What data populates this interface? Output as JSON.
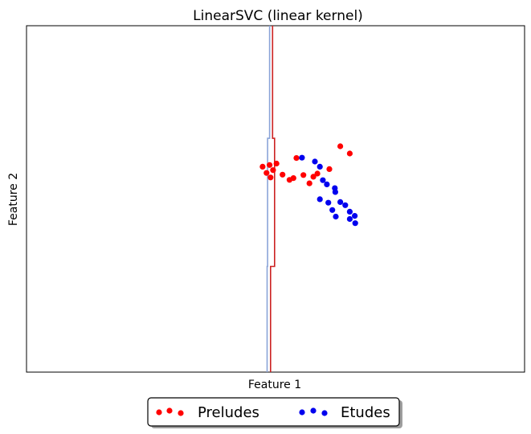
{
  "chart_data": {
    "type": "scatter",
    "title": "LinearSVC (linear kernel)",
    "xlabel": "Feature 1",
    "ylabel": "Feature 2",
    "xlim": [
      0,
      100
    ],
    "ylim": [
      0,
      100
    ],
    "grid": false,
    "ticks_shown": false,
    "legend_position": "below plot, centered",
    "colors": {
      "preludes": "#ff0000",
      "etudes": "#0000ee",
      "boundary_red": "#cc2222",
      "boundary_blue": "#8aa4d8"
    },
    "series": [
      {
        "name": "Preludes",
        "points": [
          [
            47.4,
            59.3
          ],
          [
            48.2,
            57.5
          ],
          [
            48.8,
            59.8
          ],
          [
            49.5,
            58.3
          ],
          [
            49.0,
            56.2
          ],
          [
            50.2,
            60.2
          ],
          [
            51.4,
            57.0
          ],
          [
            52.8,
            55.5
          ],
          [
            53.6,
            56.0
          ],
          [
            54.2,
            61.8
          ],
          [
            55.6,
            56.9
          ],
          [
            56.8,
            54.5
          ],
          [
            57.6,
            56.4
          ],
          [
            58.4,
            57.3
          ],
          [
            60.8,
            58.6
          ],
          [
            63.0,
            65.2
          ],
          [
            64.9,
            63.1
          ]
        ]
      },
      {
        "name": "Etudes",
        "points": [
          [
            55.3,
            61.9
          ],
          [
            57.9,
            60.8
          ],
          [
            58.9,
            59.3
          ],
          [
            59.5,
            55.4
          ],
          [
            60.3,
            54.2
          ],
          [
            61.9,
            53.1
          ],
          [
            62.0,
            52.0
          ],
          [
            63.0,
            49.1
          ],
          [
            64.0,
            48.2
          ],
          [
            64.9,
            46.3
          ],
          [
            65.9,
            45.1
          ],
          [
            64.9,
            44.2
          ],
          [
            66.0,
            43.0
          ],
          [
            58.9,
            49.9
          ],
          [
            60.6,
            48.9
          ],
          [
            61.4,
            46.8
          ],
          [
            62.1,
            44.9
          ]
        ]
      }
    ],
    "decision_boundary": {
      "red_line": [
        [
          49.4,
          100
        ],
        [
          49.4,
          67.5
        ],
        [
          49.8,
          67.5
        ],
        [
          49.8,
          30.5
        ],
        [
          49.0,
          30.5
        ],
        [
          49.0,
          0
        ]
      ],
      "blue_line": [
        [
          48.8,
          100
        ],
        [
          48.8,
          67.5
        ],
        [
          48.4,
          67.5
        ],
        [
          48.4,
          30.5
        ],
        [
          48.3,
          30.5
        ],
        [
          48.3,
          0
        ]
      ]
    },
    "legend": {
      "entries": [
        "Preludes",
        "Etudes"
      ]
    }
  }
}
